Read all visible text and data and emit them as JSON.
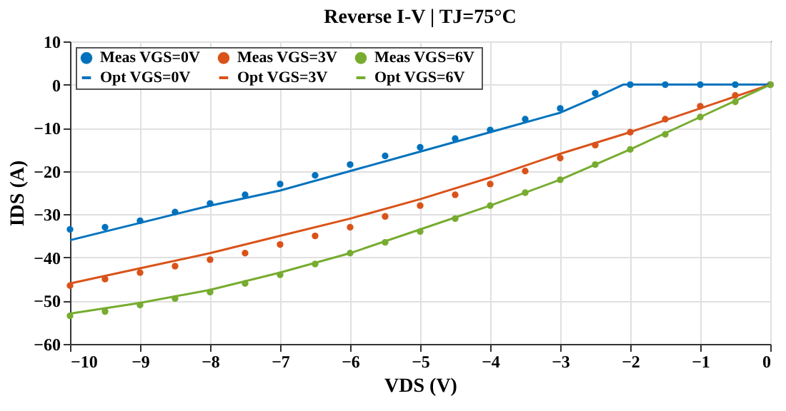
{
  "chart_data": {
    "type": "line",
    "title": "Reverse I-V  |  TJ=75°C",
    "xlabel": "VDS  (V)",
    "ylabel": "IDS  (A)",
    "x": [
      -10,
      -9.5,
      -9,
      -8.5,
      -8,
      -7.5,
      -7,
      -6.5,
      -6,
      -5.5,
      -5,
      -4.5,
      -4,
      -3.5,
      -3,
      -2.5,
      -2,
      -1.5,
      -1,
      -0.5,
      0
    ],
    "series": [
      {
        "name": "Meas  VGS=0V",
        "type": "scatter",
        "marker": "circle",
        "color": "#0072bd",
        "values": [
          -33.5,
          -33,
          -31.5,
          -29.5,
          -27.5,
          -25.5,
          -23,
          -21,
          -18.5,
          -16.5,
          -14.5,
          -12.5,
          -10.5,
          -8,
          -5.5,
          -2,
          0,
          0,
          0,
          0,
          0
        ]
      },
      {
        "name": "Meas  VGS=3V",
        "type": "scatter",
        "marker": "circle",
        "color": "#d95319",
        "values": [
          -46.5,
          -45,
          -43.5,
          -42,
          -40.5,
          -39,
          -37,
          -35,
          -33,
          -30.5,
          -28,
          -25.5,
          -23,
          -20,
          -17,
          -14,
          -11,
          -8,
          -5,
          -2.5,
          0
        ]
      },
      {
        "name": "Meas  VGS=6V",
        "type": "scatter",
        "marker": "circle",
        "color": "#77ac30",
        "values": [
          -53.5,
          -52.5,
          -51,
          -49.5,
          -48,
          -46,
          -44,
          -41.5,
          -39,
          -36.5,
          -34,
          -31,
          -28,
          -25,
          -22,
          -18.5,
          -15,
          -11.5,
          -7.5,
          -4,
          0
        ]
      },
      {
        "name": "Opt  VGS=0V",
        "color": "#0072bd",
        "x": [
          -10,
          -9,
          -8,
          -7,
          -6,
          -5,
          -4,
          -3,
          -2.5,
          -2.1,
          0
        ],
        "values": [
          -36,
          -32,
          -28,
          -24.5,
          -20,
          -15.5,
          -11,
          -6.5,
          -3,
          0,
          0
        ]
      },
      {
        "name": "Opt  VGS=3V",
        "color": "#d95319",
        "x": [
          -10,
          -9,
          -8,
          -7,
          -6,
          -5,
          -4,
          -3,
          -2,
          -1,
          0
        ],
        "values": [
          -46,
          -42.5,
          -39,
          -35,
          -31,
          -26.5,
          -21.5,
          -16,
          -11,
          -5.5,
          0
        ]
      },
      {
        "name": "Opt  VGS=6V",
        "color": "#77ac30",
        "x": [
          -10,
          -9,
          -8,
          -7,
          -6,
          -5,
          -4,
          -3,
          -2,
          -1,
          0
        ],
        "values": [
          -53,
          -50.5,
          -47.5,
          -43.5,
          -39,
          -33.5,
          -28,
          -22,
          -15,
          -7.5,
          0
        ]
      }
    ],
    "xlim": [
      -10,
      0
    ],
    "xticks": [
      -10,
      -9,
      -8,
      -7,
      -6,
      -5,
      -4,
      -3,
      -2,
      -1,
      0
    ],
    "ylim": [
      -60,
      10
    ],
    "yticks": [
      -60,
      -50,
      -40,
      -30,
      -20,
      -10,
      0,
      10
    ],
    "grid": true,
    "legend": "top left"
  }
}
